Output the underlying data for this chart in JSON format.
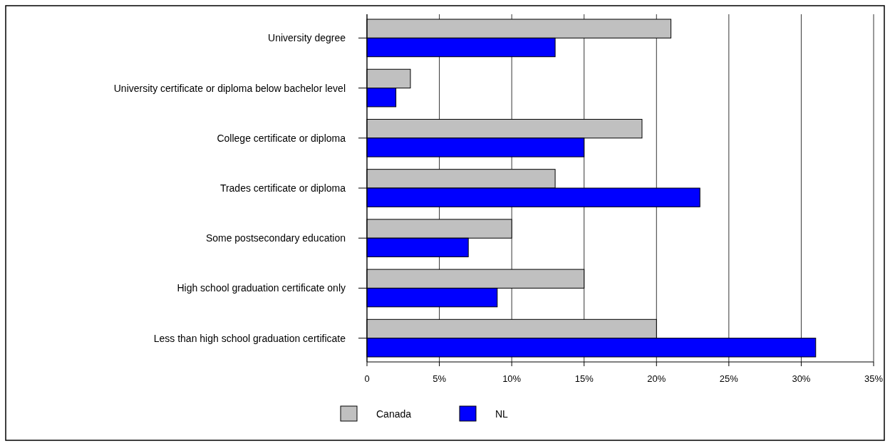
{
  "chart_data": {
    "type": "bar",
    "orientation": "horizontal",
    "categories": [
      "University degree",
      "University certificate or diploma below bachelor level",
      "College certificate or diploma",
      "Trades certificate or diploma",
      "Some postsecondary education",
      "High school graduation certificate only",
      "Less than high school graduation certificate"
    ],
    "series": [
      {
        "name": "Canada",
        "color": "#c0c0c0",
        "values": [
          21,
          3,
          19,
          13,
          10,
          15,
          20
        ]
      },
      {
        "name": "NL",
        "color": "#0000ff",
        "values": [
          13,
          2,
          15,
          23,
          7,
          9,
          31
        ]
      }
    ],
    "xlim": [
      0,
      35
    ],
    "xticks": [
      {
        "value": 0,
        "label": "0"
      },
      {
        "value": 5,
        "label": "5%"
      },
      {
        "value": 10,
        "label": "10%"
      },
      {
        "value": 15,
        "label": "15%"
      },
      {
        "value": 20,
        "label": "20%"
      },
      {
        "value": 25,
        "label": "25%"
      },
      {
        "value": 30,
        "label": "30%"
      },
      {
        "value": 35,
        "label": "35%"
      }
    ],
    "grid": "x",
    "legend": "bottom"
  }
}
